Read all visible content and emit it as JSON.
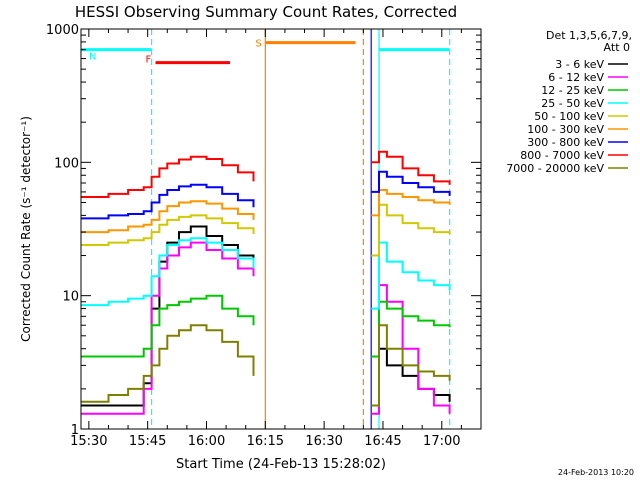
{
  "chart_data": {
    "type": "line",
    "title": "HESSI Observing Summary Count Rates, Corrected",
    "ylabel": "Corrected Count Rate (s⁻¹ detector⁻¹)",
    "xlabel": "Start Time (24-Feb-13 15:28:02)",
    "y_scale": "log",
    "ylim": [
      1,
      1000
    ],
    "xlim": [
      "15:28",
      "17:10"
    ],
    "x_ticks": [
      "15:30",
      "15:45",
      "16:00",
      "16:15",
      "16:30",
      "16:45",
      "17:00"
    ],
    "y_ticks": [
      "1",
      "10",
      "100",
      "1000"
    ],
    "legend_header": [
      "Det 1,3,5,6,7,9,",
      "Att 0"
    ],
    "legend_placement": "right",
    "timestamp": "24-Feb-2013 10:20",
    "series": [
      {
        "name": "3 - 6 keV",
        "color": "#000000",
        "x": [
          "15:28",
          "15:35",
          "15:40",
          "15:44",
          "15:46",
          "15:48",
          "15:50",
          "15:53",
          "15:56",
          "16:00",
          "16:04",
          "16:08",
          "16:12",
          "16:42",
          "16:44",
          "16:46",
          "16:50",
          "16:54",
          "16:58",
          "17:02"
        ],
        "y": [
          1.5,
          1.5,
          1.5,
          2.2,
          8,
          18,
          25,
          30,
          33,
          28,
          24,
          20,
          17,
          1.5,
          4,
          3,
          2.5,
          2,
          1.8,
          1.6
        ]
      },
      {
        "name": "6 - 12 keV",
        "color": "#ff00ff",
        "x": [
          "15:28",
          "15:35",
          "15:40",
          "15:44",
          "15:46",
          "15:48",
          "15:50",
          "15:53",
          "15:56",
          "16:00",
          "16:04",
          "16:08",
          "16:12",
          "16:42",
          "16:44",
          "16:46",
          "16:50",
          "16:54",
          "16:58",
          "17:02"
        ],
        "y": [
          1.3,
          1.3,
          1.3,
          2,
          10,
          16,
          20,
          23,
          25,
          22,
          19,
          16,
          14,
          1.3,
          12,
          9,
          4,
          2,
          1.5,
          1.3
        ]
      },
      {
        "name": "12 - 25 keV",
        "color": "#00c800",
        "x": [
          "15:28",
          "15:35",
          "15:40",
          "15:44",
          "15:46",
          "15:48",
          "15:50",
          "15:53",
          "15:56",
          "16:00",
          "16:04",
          "16:08",
          "16:12",
          "16:42",
          "16:44",
          "16:46",
          "16:50",
          "16:54",
          "16:58",
          "17:02"
        ],
        "y": [
          3.5,
          3.5,
          3.5,
          4,
          6,
          8,
          8.5,
          9,
          9.5,
          10,
          8,
          7,
          6,
          3.5,
          9,
          8,
          7,
          6.5,
          6,
          5.8
        ]
      },
      {
        "name": "25 - 50 keV",
        "color": "#00ffff",
        "x": [
          "15:28",
          "15:35",
          "15:40",
          "15:44",
          "15:46",
          "15:48",
          "15:50",
          "15:53",
          "15:56",
          "16:00",
          "16:04",
          "16:08",
          "16:12",
          "16:42",
          "16:44",
          "16:46",
          "16:50",
          "16:54",
          "16:58",
          "17:02"
        ],
        "y": [
          8.5,
          9,
          9.5,
          10,
          14,
          20,
          24,
          26,
          27,
          25,
          22,
          19,
          16,
          8,
          25,
          18,
          15,
          13,
          12,
          11
        ]
      },
      {
        "name": "50 - 100 keV",
        "color": "#d2c800",
        "x": [
          "15:28",
          "15:35",
          "15:40",
          "15:44",
          "15:46",
          "15:48",
          "15:50",
          "15:53",
          "15:56",
          "16:00",
          "16:04",
          "16:08",
          "16:12",
          "16:42",
          "16:44",
          "16:46",
          "16:50",
          "16:54",
          "16:58",
          "17:02"
        ],
        "y": [
          24,
          25,
          26,
          27,
          30,
          34,
          37,
          39,
          40,
          38,
          35,
          32,
          29,
          20,
          48,
          40,
          35,
          32,
          30,
          29
        ]
      },
      {
        "name": "100 - 300 keV",
        "color": "#ff9600",
        "x": [
          "15:28",
          "15:35",
          "15:40",
          "15:44",
          "15:46",
          "15:48",
          "15:50",
          "15:53",
          "15:56",
          "16:00",
          "16:04",
          "16:08",
          "16:12",
          "16:42",
          "16:44",
          "16:46",
          "16:50",
          "16:54",
          "16:58",
          "17:02"
        ],
        "y": [
          30,
          31,
          33,
          34,
          37,
          43,
          47,
          50,
          51,
          49,
          45,
          41,
          37,
          40,
          62,
          58,
          55,
          52,
          50,
          48
        ]
      },
      {
        "name": "300 - 800 keV",
        "color": "#0000ff",
        "x": [
          "15:28",
          "15:35",
          "15:40",
          "15:44",
          "15:46",
          "15:48",
          "15:50",
          "15:53",
          "15:56",
          "16:00",
          "16:04",
          "16:08",
          "16:12",
          "16:42",
          "16:44",
          "16:46",
          "16:50",
          "16:54",
          "16:58",
          "17:02"
        ],
        "y": [
          38,
          40,
          41,
          43,
          50,
          57,
          62,
          66,
          68,
          65,
          58,
          52,
          46,
          60,
          85,
          78,
          70,
          65,
          60,
          56
        ]
      },
      {
        "name": "800 - 7000 keV",
        "color": "#ff0000",
        "x": [
          "15:28",
          "15:35",
          "15:40",
          "15:44",
          "15:46",
          "15:48",
          "15:50",
          "15:53",
          "15:56",
          "16:00",
          "16:04",
          "16:08",
          "16:12",
          "16:42",
          "16:44",
          "16:46",
          "16:50",
          "16:54",
          "16:58",
          "17:02"
        ],
        "y": [
          55,
          58,
          62,
          65,
          78,
          90,
          98,
          105,
          110,
          106,
          95,
          84,
          72,
          100,
          120,
          110,
          90,
          80,
          72,
          68
        ]
      },
      {
        "name": "7000 - 20000 keV",
        "color": "#808000",
        "x": [
          "15:28",
          "15:35",
          "15:40",
          "15:44",
          "15:46",
          "15:48",
          "15:50",
          "15:53",
          "15:56",
          "16:00",
          "16:04",
          "16:08",
          "16:12",
          "16:42",
          "16:44",
          "16:46",
          "16:50",
          "16:54",
          "16:58",
          "17:02"
        ],
        "y": [
          1.6,
          1.8,
          2,
          2.5,
          3,
          4,
          5,
          5.5,
          6,
          5.5,
          4.5,
          3.5,
          2.5,
          1.5,
          6,
          4,
          3,
          2.7,
          2.5,
          2.3
        ]
      }
    ],
    "flags": [
      {
        "label": "N",
        "color": "#00ffff",
        "segments": [
          [
            "15:28",
            "15:46"
          ],
          [
            "16:44",
            "17:02"
          ]
        ],
        "level": 700
      },
      {
        "label": "F",
        "color": "#ff0000",
        "segments": [
          [
            "15:47",
            "16:06"
          ]
        ],
        "level": 560
      },
      {
        "label": "S",
        "color": "#ff8000",
        "segments": [
          [
            "16:15",
            "16:38"
          ]
        ],
        "level": 790
      }
    ],
    "vlines": [
      {
        "time": "15:46",
        "color": "#00ffff",
        "style": "dashed"
      },
      {
        "time": "16:15",
        "color": "#ff8000",
        "style": "solid"
      },
      {
        "time": "16:40",
        "color": "#ff8000",
        "style": "dashed"
      },
      {
        "time": "16:42",
        "color": "#0000ff",
        "style": "solid"
      },
      {
        "time": "16:44",
        "color": "#00ffff",
        "style": "solid"
      },
      {
        "time": "17:02",
        "color": "#00ffff",
        "style": "dashed"
      }
    ]
  }
}
